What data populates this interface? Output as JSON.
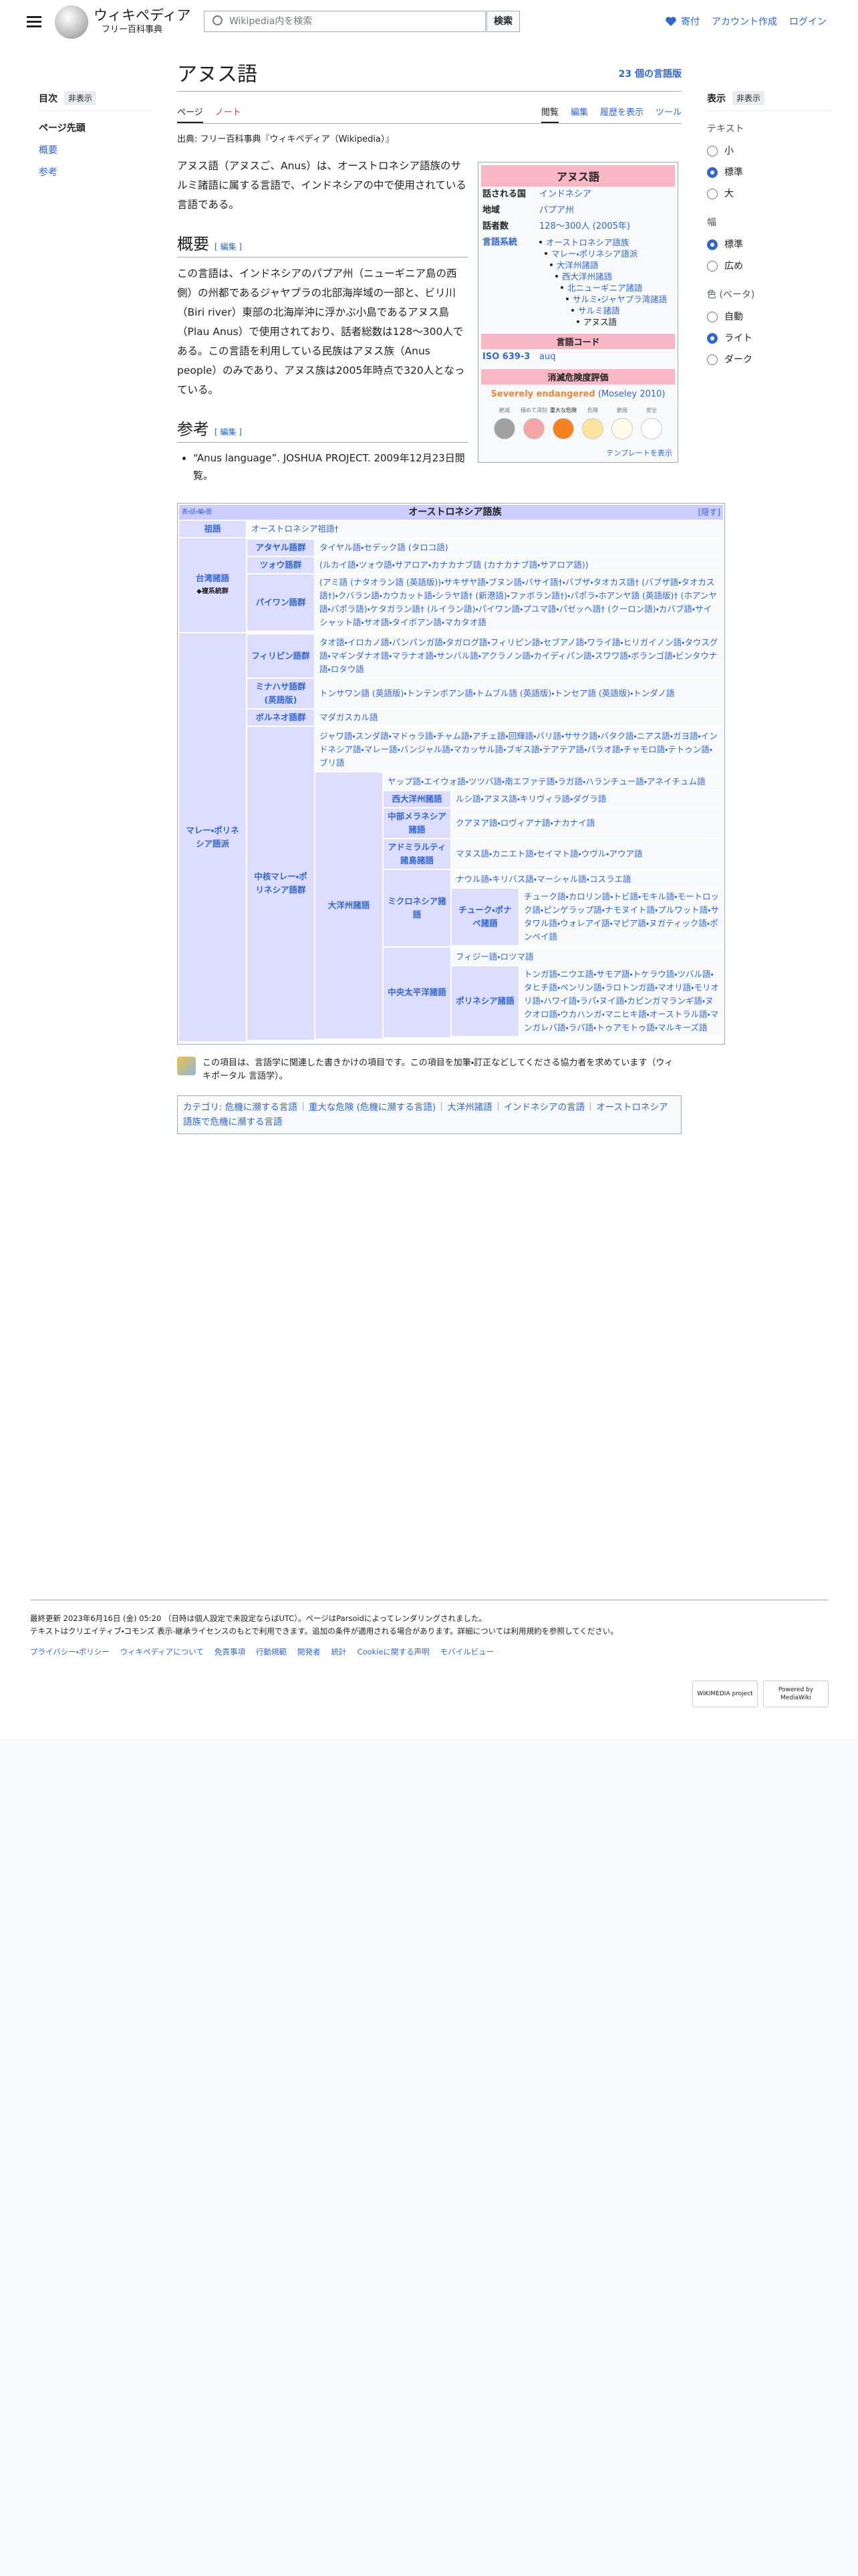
{
  "header": {
    "site_name": "ウィキペディア",
    "site_tagline": "フリー百科事典",
    "search_placeholder": "Wikipedia内を検索",
    "search_button": "検索",
    "donate": "寄付",
    "create_account": "アカウント作成",
    "login": "ログイン"
  },
  "toc": {
    "title": "目次",
    "hide": "非表示",
    "items": [
      "ページ先頭",
      "概要",
      "参考"
    ]
  },
  "appearance": {
    "title": "表示",
    "hide": "非表示",
    "sections": [
      {
        "heading": "テキスト",
        "options": [
          "小",
          "標準",
          "大"
        ],
        "selected": 1
      },
      {
        "heading": "幅",
        "options": [
          "標準",
          "広め"
        ],
        "selected": 0
      },
      {
        "heading": "色 (ベータ)",
        "options": [
          "自動",
          "ライト",
          "ダーク"
        ],
        "selected": 1
      }
    ]
  },
  "article": {
    "title": "アヌス語",
    "languages": "23 個の言語版",
    "tabs_left": [
      "ページ",
      "ノート"
    ],
    "tabs_right": [
      "閲覧",
      "編集",
      "履歴を表示",
      "ツール"
    ],
    "source": "出典: フリー百科事典『ウィキペディア（Wikipedia）』",
    "intro": "アヌス語（アヌスご、Anus）は、オーストロネシア語族のサルミ諸語に属する言語で、インドネシアの中で使用されている言語である。",
    "overview_heading": "概要",
    "overview_edit": "[ 編集 ]",
    "overview": "この言語は、インドネシアのパプア州（ニューギニア島の西側）の州都であるジャヤプラの北部海岸域の一部と、ビリ川（Biri river）東部の北海岸沖に浮かぶ小島であるアヌス島（Plau Anus）で使用されており、話者総数は128〜300人である。この言語を利用している民族はアヌス族（Anus people）のみであり、アヌス族は2005年時点で320人となっている。",
    "refs_heading": "参考",
    "refs_edit": "[ 編集 ]",
    "refs": [
      "“Anus language”. JOSHUA PROJECT. 2009年12月23日閲覧。"
    ]
  },
  "infobox": {
    "title": "アヌス語",
    "rows": [
      {
        "label": "話される国",
        "value": "インドネシア"
      },
      {
        "label": "地域",
        "value": "パプア州"
      },
      {
        "label": "話者数",
        "value": "128〜300人 (2005年)"
      }
    ],
    "family_label": "言語系統",
    "family": [
      "オーストロネシア語族",
      "マレー・ポリネシア語派",
      "大洋州諸語",
      "西大洋州諸語",
      "北ニューギニア諸語",
      "サルミ・ジャヤプラ湾諸語",
      "サルミ諸語",
      "アヌス語"
    ],
    "code_heading": "言語コード",
    "iso_label": "ISO 639-3",
    "iso_value": "auq",
    "endangerment_heading": "消滅危険度評価",
    "status": "Severely endangered",
    "status_source": "(Moseley 2010)",
    "scale": [
      "絶滅",
      "極めて深刻",
      "重大な危険",
      "危険",
      "脆弱",
      "安全"
    ],
    "scale_colors": [
      "#a0a0a0",
      "#f4a6a6",
      "#f58220",
      "#fde3a0",
      "#fffbe8",
      "#ffffff"
    ],
    "current": 2,
    "template_link": "テンプレートを表示"
  },
  "navbox": {
    "vte": "表・話・編・歴",
    "title": "オーストロネシア語族",
    "toggle": "[隠す]",
    "groups": [
      {
        "label": "祖語",
        "content": "オーストロネシア祖語†"
      },
      {
        "label": "台湾諸語",
        "note": "◆複系統群",
        "groups": [
          {
            "label": "アタヤル語群",
            "content": "タイヤル語・セデック語 (タロコ語)"
          },
          {
            "label": "ツォウ語群",
            "content": "(ルカイ語・ツォウ語・サアロア・カナカナブ語 (カナカナブ語・サアロア語))"
          },
          {
            "label": "パイワン語群",
            "content": "(アミ語 (ナタオラン語 (英語版))・サキザヤ語・ブヌン語・バサイ語†・バブザ・タオカス語† (バブザ語・タオカス語†)・クバラン語・カウカット語・シラヤ語† (新港語)・ファボラン語†)・パポラ・ホアンヤ語 (英語版)† (ホアンヤ語・パポラ語)・ケタガラン語† (ルイラン語)・パイワン語・プユマ語・パゼッヘ語† (クーロン語)・カバブ語・サイシャット語・サオ語・タイボアン語・マカタオ語"
          }
        ]
      },
      {
        "label": "マレー・ポリネシア語派",
        "groups": [
          {
            "label": "フィリピン語群",
            "content": "タオ語・イロカノ語・パンパンガ語・タガログ語・フィリピン語・セブアノ語・ワライ語・ヒリガイノン語・タウスグ語・マギンダナオ語・マラナオ語・サンバル語・アクラノン語・カイディパン語・スワワ語・ボランゴ語・ビンタウナ語・ロタウ語"
          },
          {
            "label": "ミナハサ語群 (英語版)",
            "content": "トンサワン語 (英語版)・トンテンボアン語・トムブル語 (英語版)・トンセア語 (英語版)・トンダノ語"
          },
          {
            "label": "ボルネオ語群",
            "content": "マダガスカル語"
          },
          {
            "label": "中核マレー・ポリネシア語群",
            "groups": [
              {
                "content": "ジャワ語・スンダ語・マドゥラ語・チャム語・アチェ語・回輝語・バリ語・ササク語・バタク語・ニアス語・ガヨ語・インドネシア語・マレー語・バンジャル語・マカッサル語・ブギス語・テアテア語・パラオ語・チャモロ語・テトゥン語・ブリ語"
              },
              {
                "label": "大洋州諸語",
                "groups": [
                  {
                    "content": "ヤップ語・エイウォ語・ツツバ語・南エファテ語・ラガ語・ハランチュー語・アネイチュム語"
                  },
                  {
                    "label": "西大洋州諸語",
                    "content": "ルシ語・アヌス語・キリヴィラ語・ダグラ語"
                  },
                  {
                    "label": "中部メラネシア諸語",
                    "content": "クアヌア語・ロヴィアナ語・ナカナイ語"
                  },
                  {
                    "label": "アドミラルティ諸島諸語",
                    "content": "マヌス語・カニエト語・セイマト語・ウヴル・アウア語"
                  },
                  {
                    "label": "ミクロネシア諸語",
                    "groups": [
                      {
                        "content": "ナウル語・キリバス語・マーシャル語・コスラエ語"
                      },
                      {
                        "label": "チューク・ポナペ諸語",
                        "content": "チューク語・カロリン語・トビ語・モキル語・モートロック語・ピンゲラップ語・ナモヌイト語・プルワット語・サタワル語・ウォレアイ語・マピア語・ヌガティック語・ポンペイ語"
                      }
                    ]
                  },
                  {
                    "label": "中央太平洋諸語",
                    "groups": [
                      {
                        "content": "フィジー語・ロツマ語"
                      },
                      {
                        "label": "ポリネシア諸語",
                        "content": "トンガ語・ニウエ語・サモア語・トケラウ語・ツバル語・タヒチ語・ペンリン語・ラロトンガ語・マオリ語・モリオリ語・ハワイ語・ラパ・ヌイ語・カピンガマランギ語・ヌクオロ語・ウカハンガ・マニヒキ語・オーストラル語・マンガレバ語・ラパ語・トゥアモトゥ語・マルキーズ語"
                      }
                    ]
                  }
                ]
              }
            ]
          }
        ]
      }
    ]
  },
  "stub": "この項目は、言語学に関連した書きかけの項目です。この項目を加筆・訂正などしてくださる協力者を求めています（ウィキポータル 言語学）。",
  "categories": {
    "label": "カテゴリ:",
    "items": [
      "危機に瀕する言語",
      "重大な危険 (危機に瀕する言語)",
      "大洋州諸語",
      "インドネシアの言語",
      "オーストロネシア語族で危機に瀕する言語"
    ]
  },
  "footer": {
    "last_modified": "最終更新 2023年6月16日 (金) 05:20 （日時は個人設定で未設定ならばUTC）。ページはParsoidによってレンダリングされました。",
    "license": "テキストはクリエイティブ・コモンズ 表示-継承ライセンスのもとで利用できます。追加の条件が適用される場合があります。詳細については利用規約を参照してください。",
    "links": [
      "プライバシー・ポリシー",
      "ウィキペディアについて",
      "免責事項",
      "行動規範",
      "開発者",
      "統計",
      "Cookieに関する声明",
      "モバイルビュー"
    ],
    "badges": [
      "WIKIMEDIA project",
      "Powered by MediaWiki"
    ]
  }
}
